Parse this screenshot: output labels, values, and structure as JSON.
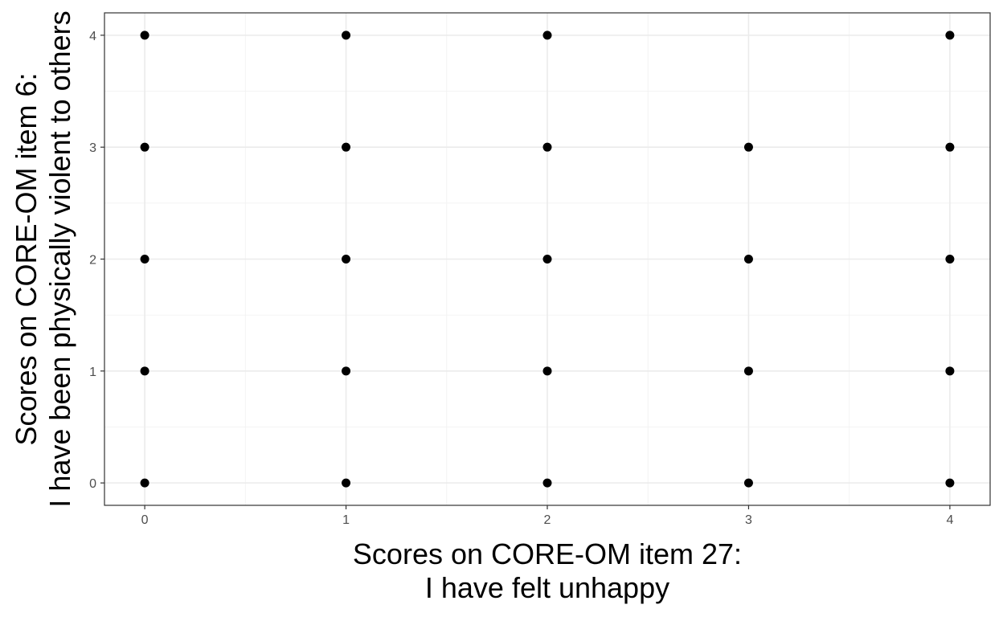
{
  "chart_data": {
    "type": "scatter",
    "xlabel": [
      "Scores on CORE-OM item 27:",
      "I have felt unhappy"
    ],
    "ylabel": [
      "Scores on CORE-OM item 6:",
      "I have been physically violent to others"
    ],
    "xlim": [
      -0.2,
      4.2
    ],
    "ylim": [
      -0.2,
      4.2
    ],
    "x_ticks": [
      0,
      1,
      2,
      3,
      4
    ],
    "y_ticks": [
      0,
      1,
      2,
      3,
      4
    ],
    "grid": true,
    "legend": "none",
    "point_color": "#000000",
    "points": [
      {
        "x": 0,
        "y": 0
      },
      {
        "x": 0,
        "y": 1
      },
      {
        "x": 0,
        "y": 2
      },
      {
        "x": 0,
        "y": 3
      },
      {
        "x": 0,
        "y": 4
      },
      {
        "x": 1,
        "y": 0
      },
      {
        "x": 1,
        "y": 1
      },
      {
        "x": 1,
        "y": 2
      },
      {
        "x": 1,
        "y": 3
      },
      {
        "x": 1,
        "y": 4
      },
      {
        "x": 2,
        "y": 0
      },
      {
        "x": 2,
        "y": 1
      },
      {
        "x": 2,
        "y": 2
      },
      {
        "x": 2,
        "y": 3
      },
      {
        "x": 2,
        "y": 4
      },
      {
        "x": 3,
        "y": 0
      },
      {
        "x": 3,
        "y": 1
      },
      {
        "x": 3,
        "y": 2
      },
      {
        "x": 3,
        "y": 3
      },
      {
        "x": 4,
        "y": 0
      },
      {
        "x": 4,
        "y": 1
      },
      {
        "x": 4,
        "y": 2
      },
      {
        "x": 4,
        "y": 3
      },
      {
        "x": 4,
        "y": 4
      }
    ]
  }
}
